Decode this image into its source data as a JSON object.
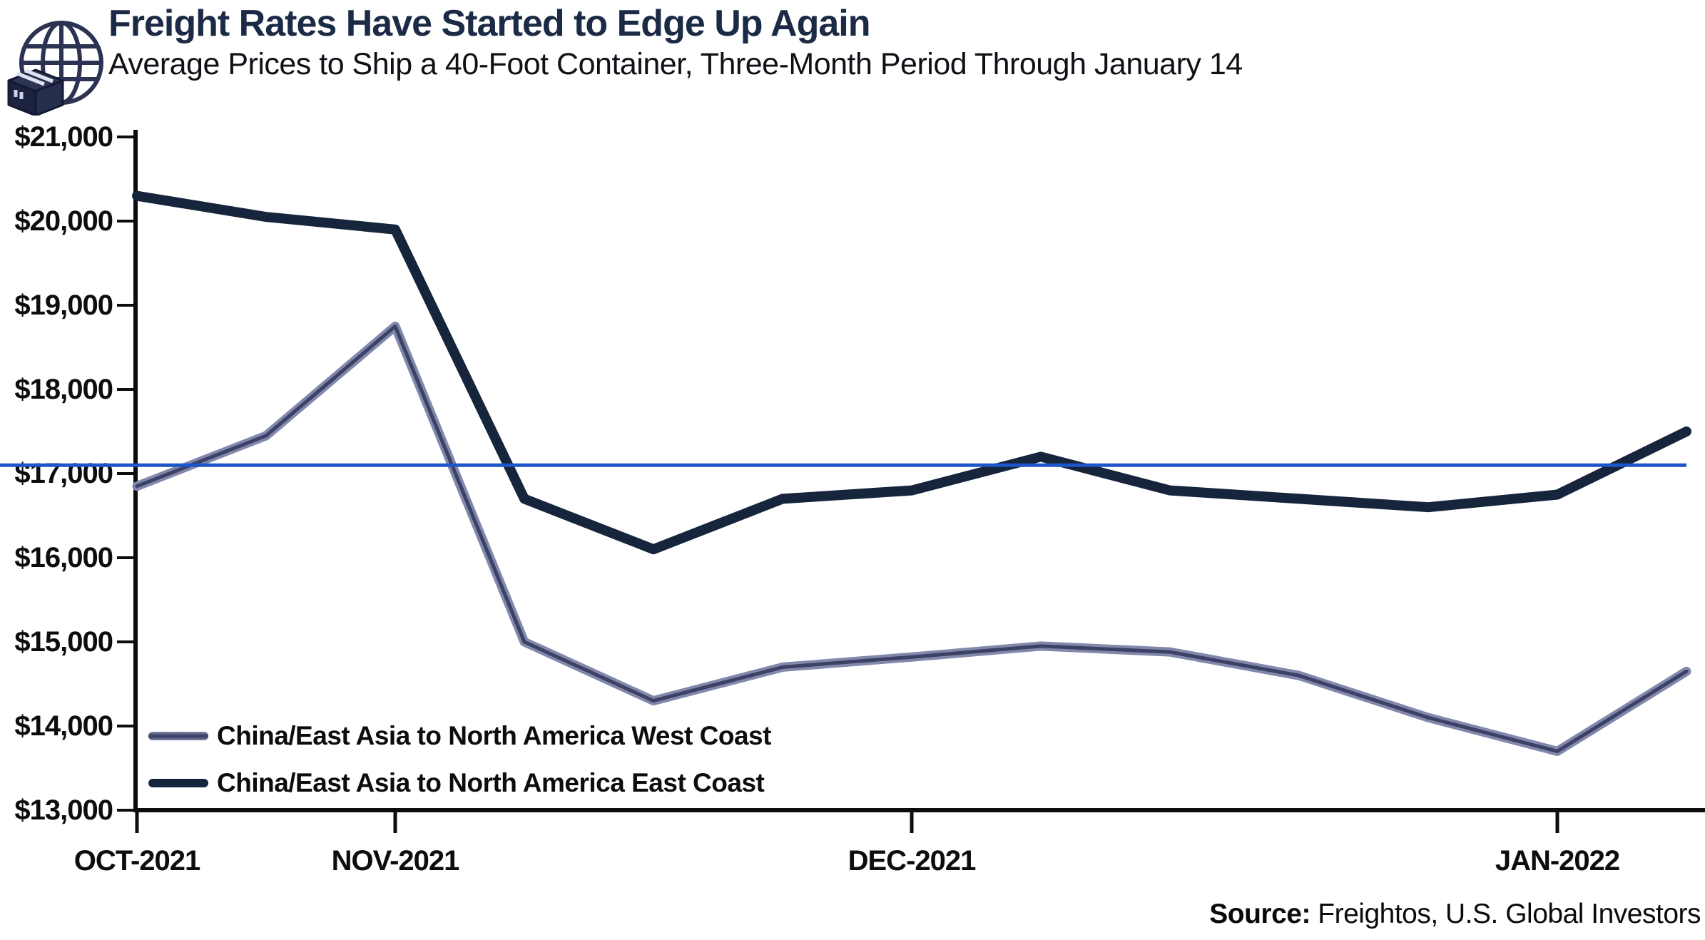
{
  "header": {
    "title": "Freight Rates Have Started to Edge Up Again",
    "subtitle": "Average Prices to Ship a 40-Foot Container, Three-Month Period Through January 14"
  },
  "source": {
    "label": "Source:",
    "text": " Freightos, U.S. Global Investors"
  },
  "colors": {
    "title_navy": "#1b2a45",
    "east_line": "#16253c",
    "west_line_core": "#3c4166",
    "west_line_edge": "#8287ac",
    "reference_blue": "#1d56c8",
    "axis_black": "#0d0d0d"
  },
  "logo": {
    "name": "globe-with-shipping-box"
  },
  "chart_data": {
    "type": "line",
    "title": "Freight Rates Have Started to Edge Up Again",
    "subtitle": "Average Prices to Ship a 40-Foot Container, Three-Month Period Through January 14",
    "grid": false,
    "legend_position": "inside-bottom-left",
    "y_axis": {
      "min": 13000,
      "max": 21000,
      "tick_step": 1000,
      "tick_values": [
        21000,
        20000,
        19000,
        18000,
        17000,
        16000,
        15000,
        14000,
        13000
      ],
      "tick_labels": [
        "$21,000",
        "$20,000",
        "$19,000",
        "$18,000",
        "$17,000",
        "$16,000",
        "$15,000",
        "$14,000",
        "$13,000"
      ]
    },
    "x_axis": {
      "n_points": 13,
      "note": "weekly observations over three months through January 14",
      "tick_labels": [
        "OCT-2021",
        "NOV-2021",
        "DEC-2021",
        "JAN-2022"
      ],
      "tick_indices": [
        0,
        2,
        6,
        11
      ]
    },
    "series": [
      {
        "name": "China/East Asia to North America West Coast",
        "color_key": "west",
        "values": [
          16850,
          17450,
          18750,
          15000,
          14300,
          14700,
          14820,
          14950,
          14880,
          14600,
          14100,
          13700,
          14650
        ]
      },
      {
        "name": "China/East Asia to North America East Coast",
        "color_key": "east",
        "values": [
          20300,
          20050,
          19900,
          16700,
          16100,
          16700,
          16800,
          17200,
          16800,
          16700,
          16600,
          16750,
          17500
        ]
      }
    ],
    "reference_line": {
      "value": 17100,
      "color_key": "reference_blue"
    }
  }
}
